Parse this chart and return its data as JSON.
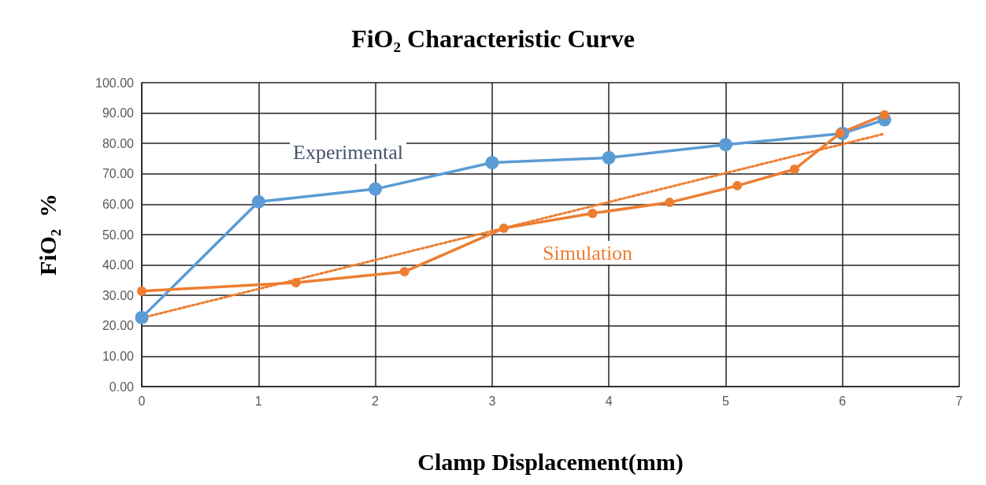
{
  "chart_data": {
    "type": "line",
    "title": "FiO₂ Characteristic Curve",
    "xlabel": "Clamp Displacement(mm)",
    "ylabel": "FiO₂  %",
    "xlim": [
      0,
      7
    ],
    "xticks": [
      0,
      1,
      2,
      3,
      4,
      5,
      6,
      7
    ],
    "ylim": [
      0,
      100
    ],
    "yticks": [
      {
        "value": 0,
        "label": "0.00"
      },
      {
        "value": 10,
        "label": "10.00"
      },
      {
        "value": 20,
        "label": "20.00"
      },
      {
        "value": 30,
        "label": "30.00"
      },
      {
        "value": 40,
        "label": "40.00"
      },
      {
        "value": 50,
        "label": "50.00"
      },
      {
        "value": 60,
        "label": "60.00"
      },
      {
        "value": 70,
        "label": "70.00"
      },
      {
        "value": 80,
        "label": "80.00"
      },
      {
        "value": 90,
        "label": "90.00"
      },
      {
        "value": 100,
        "label": "100.00"
      }
    ],
    "grid": true,
    "legend": false,
    "marker": "circle",
    "line_style": "solid",
    "series": [
      {
        "name": "Experimental",
        "color": "#5b9bd5",
        "x": [
          0,
          1,
          2,
          3,
          4,
          5,
          6,
          6.36
        ],
        "values": [
          22.7,
          60.8,
          65.0,
          73.7,
          75.3,
          79.6,
          83.3,
          87.8
        ]
      },
      {
        "name": "Simulation",
        "color": "#ed7d31",
        "x": [
          0,
          1.32,
          2.25,
          3.1,
          3.86,
          4.52,
          5.1,
          5.59,
          5.98,
          6.36
        ],
        "values": [
          31.4,
          34.2,
          37.8,
          52.1,
          57.0,
          60.6,
          66.1,
          71.5,
          83.4,
          89.4
        ]
      },
      {
        "type": "line",
        "color": "#ed7d31",
        "marker": "none",
        "line_style": "dotted",
        "x": [
          0,
          6.36
        ],
        "values": [
          22.6,
          83.2
        ]
      }
    ]
  }
}
